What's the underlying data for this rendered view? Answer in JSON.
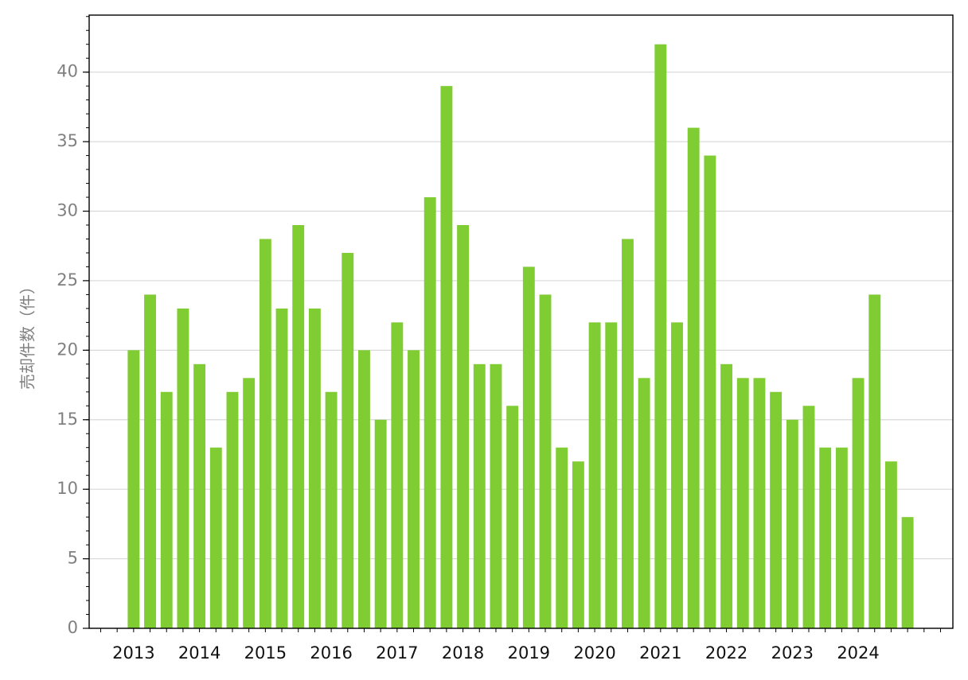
{
  "chart_data": {
    "type": "bar",
    "y_label": "売却件数（件）",
    "categories": [
      "2013",
      null,
      null,
      null,
      "2014",
      null,
      null,
      null,
      "2015",
      null,
      null,
      null,
      "2016",
      null,
      null,
      null,
      "2017",
      null,
      null,
      null,
      "2018",
      null,
      null,
      null,
      "2019",
      null,
      null,
      null,
      "2020",
      null,
      null,
      null,
      "2021",
      null,
      null,
      null,
      "2022",
      null,
      null,
      null,
      "2023",
      null,
      null,
      null,
      "2024",
      null,
      null,
      null
    ],
    "values": [
      20,
      24,
      17,
      23,
      19,
      13,
      17,
      18,
      28,
      23,
      29,
      23,
      17,
      27,
      20,
      15,
      22,
      20,
      31,
      39,
      29,
      19,
      19,
      16,
      26,
      24,
      13,
      12,
      22,
      22,
      28,
      18,
      42,
      22,
      36,
      34,
      19,
      18,
      18,
      17,
      15,
      16,
      13,
      13,
      18,
      24,
      12,
      8
    ],
    "color": "#80cc33",
    "ylim": [
      0,
      44.1
    ],
    "yticks": [
      0,
      5,
      10,
      15,
      20,
      25,
      30,
      35,
      40
    ],
    "grid": true
  }
}
